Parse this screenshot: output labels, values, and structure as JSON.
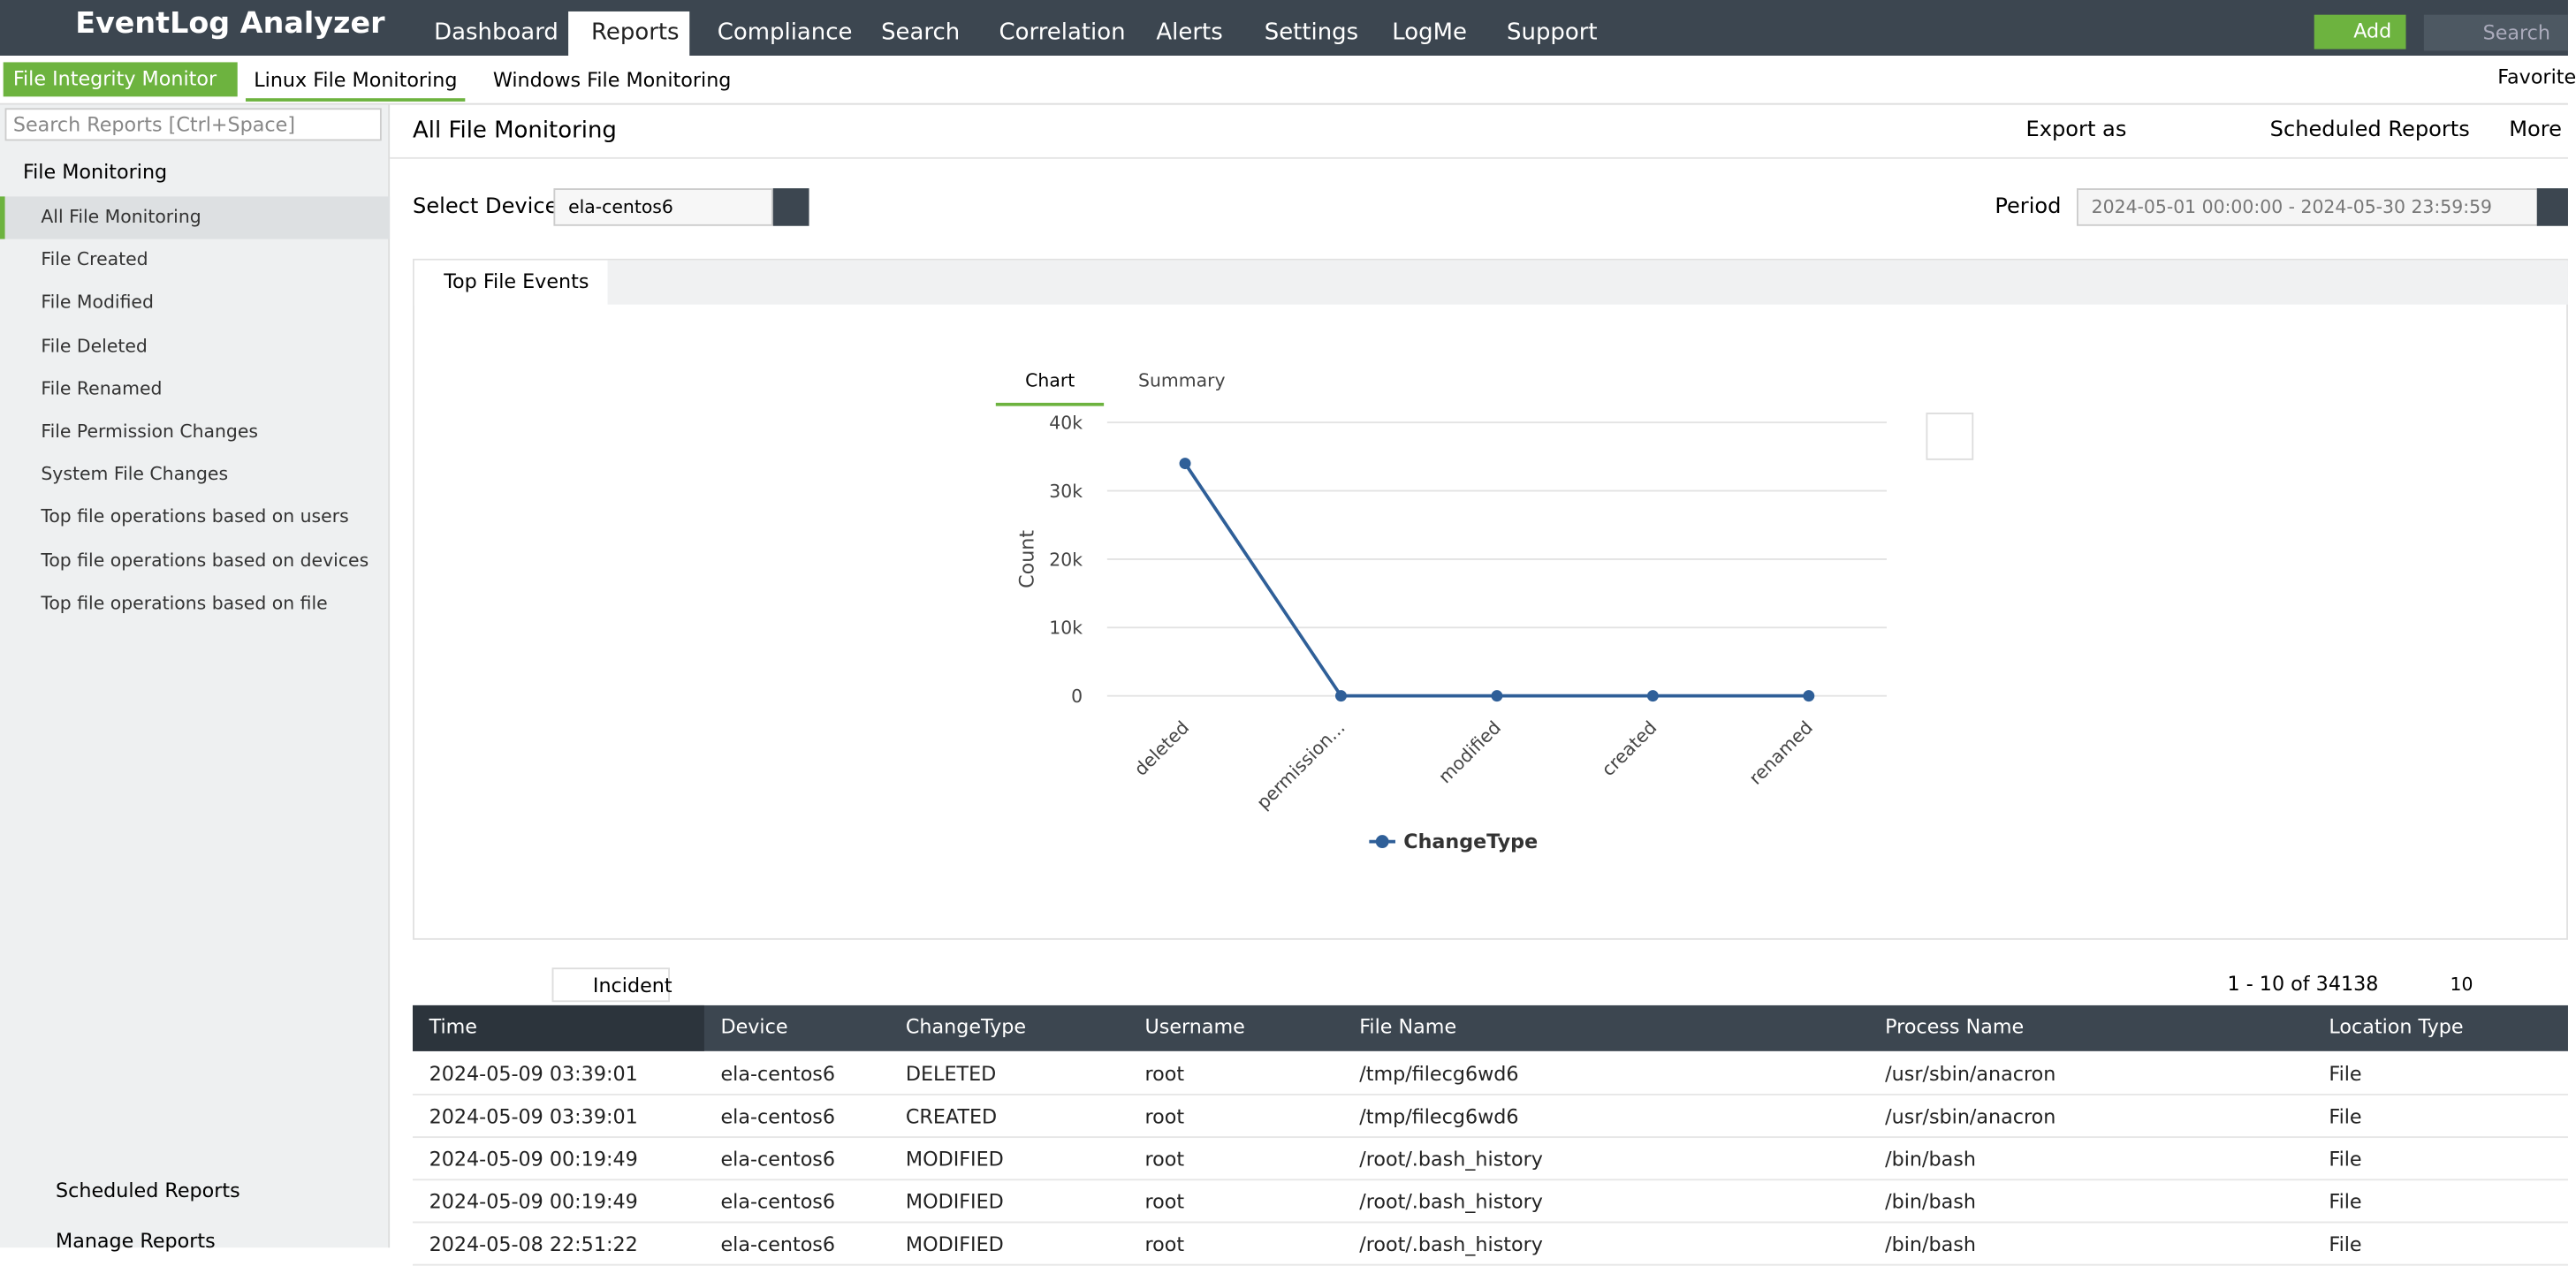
{
  "header": {
    "brand": "EventLog Analyzer",
    "nav": [
      "Dashboard",
      "Reports",
      "Compliance",
      "Search",
      "Correlation",
      "Alerts",
      "Settings",
      "LogMe",
      "Support"
    ],
    "active": 1,
    "add": "Add",
    "search": "Search"
  },
  "subnav": {
    "module": "File Integrity Monitor",
    "tabs": [
      "Linux File Monitoring",
      "Windows File Monitoring"
    ],
    "favorites": "Favorite"
  },
  "sidebar": {
    "search_placeholder": "Search Reports [Ctrl+Space]",
    "group": "File Monitoring",
    "items": [
      "All File Monitoring",
      "File Created",
      "File Modified",
      "File Deleted",
      "File Renamed",
      "File Permission Changes",
      "System File Changes",
      "Top file operations based on users",
      "Top file operations based on devices",
      "Top file operations based on file"
    ],
    "footer": [
      "Scheduled Reports",
      "Manage Reports"
    ]
  },
  "report": {
    "title": "All File Monitoring",
    "export": "Export as",
    "scheduled": "Scheduled Reports",
    "more": "More",
    "device_label": "Select Device",
    "device": "ela-centos6",
    "period_label": "Period",
    "period": "2024-05-01 00:00:00 - 2024-05-30 23:59:59",
    "panel_tab": "Top File Events",
    "chart_tabs": [
      "Chart",
      "Summary"
    ]
  },
  "chart_data": {
    "type": "line",
    "y_label": "Count",
    "categories": [
      "deleted",
      "permission...",
      "modified",
      "created",
      "renamed"
    ],
    "series": [
      {
        "name": "ChangeType",
        "color": "#2f5f98",
        "values": [
          34000,
          0,
          0,
          0,
          0
        ]
      }
    ],
    "ylim": [
      0,
      40000
    ],
    "yticks": [
      0,
      {
        "value": 10000,
        "label": "10k"
      },
      {
        "value": 20000,
        "label": "20k"
      },
      {
        "value": 30000,
        "label": "30k"
      },
      {
        "value": 40000,
        "label": "40k"
      }
    ],
    "grid": true
  },
  "table": {
    "toolbar": {
      "incident": "Incident",
      "pagination": "1 - 10 of 34138",
      "page_size": "10"
    },
    "columns": [
      "Time",
      "Device",
      "ChangeType",
      "Username",
      "File Name",
      "Process Name",
      "Location Type"
    ],
    "rows": [
      [
        "2024-05-09 03:39:01",
        "ela-centos6",
        "DELETED",
        "root",
        "/tmp/filecg6wd6",
        "/usr/sbin/anacron",
        "File"
      ],
      [
        "2024-05-09 03:39:01",
        "ela-centos6",
        "CREATED",
        "root",
        "/tmp/filecg6wd6",
        "/usr/sbin/anacron",
        "File"
      ],
      [
        "2024-05-09 00:19:49",
        "ela-centos6",
        "MODIFIED",
        "root",
        "/root/.bash_history",
        "/bin/bash",
        "File"
      ],
      [
        "2024-05-09 00:19:49",
        "ela-centos6",
        "MODIFIED",
        "root",
        "/root/.bash_history",
        "/bin/bash",
        "File"
      ],
      [
        "2024-05-08 22:51:22",
        "ela-centos6",
        "MODIFIED",
        "root",
        "/root/.bash_history",
        "/bin/bash",
        "File"
      ]
    ]
  }
}
